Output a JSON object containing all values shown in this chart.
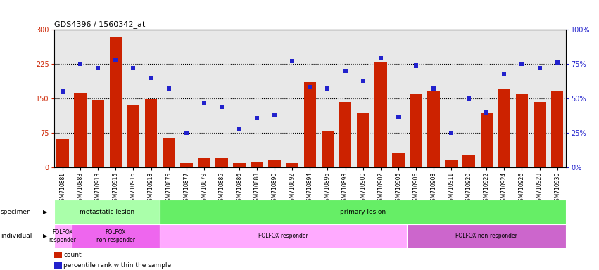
{
  "title": "GDS4396 / 1560342_at",
  "samples": [
    "GSM710881",
    "GSM710883",
    "GSM710913",
    "GSM710915",
    "GSM710916",
    "GSM710918",
    "GSM710875",
    "GSM710877",
    "GSM710879",
    "GSM710885",
    "GSM710886",
    "GSM710888",
    "GSM710890",
    "GSM710892",
    "GSM710894",
    "GSM710896",
    "GSM710898",
    "GSM710900",
    "GSM710902",
    "GSM710905",
    "GSM710906",
    "GSM710908",
    "GSM710911",
    "GSM710920",
    "GSM710922",
    "GSM710924",
    "GSM710926",
    "GSM710928",
    "GSM710930"
  ],
  "counts": [
    62,
    163,
    147,
    283,
    135,
    148,
    65,
    9,
    22,
    21,
    9,
    13,
    17,
    10,
    185,
    80,
    143,
    118,
    230,
    30,
    159,
    165,
    15,
    28,
    118,
    170,
    160,
    143,
    167
  ],
  "percentile_ranks": [
    55,
    75,
    72,
    78,
    72,
    65,
    57,
    25,
    47,
    44,
    28,
    36,
    38,
    77,
    58,
    57,
    70,
    63,
    79,
    37,
    74,
    57,
    25,
    50,
    40,
    68,
    75,
    72,
    76
  ],
  "bar_color": "#cc2200",
  "dot_color": "#2222cc",
  "bg_color": "#e8e8e8",
  "ylim_left": [
    0,
    300
  ],
  "ylim_right": [
    0,
    100
  ],
  "yticks_left": [
    0,
    75,
    150,
    225,
    300
  ],
  "yticks_right": [
    0,
    25,
    50,
    75,
    100
  ],
  "ytick_labels_right": [
    "0%",
    "25%",
    "50%",
    "75%",
    "100%"
  ],
  "hlines": [
    75,
    150,
    225
  ],
  "specimen_groups": [
    {
      "label": "metastatic lesion",
      "start": 0,
      "end": 6,
      "color": "#aaffaa"
    },
    {
      "label": "primary lesion",
      "start": 6,
      "end": 29,
      "color": "#66ee66"
    }
  ],
  "individual_groups": [
    {
      "label": "FOLFOX\nresponder",
      "start": 0,
      "end": 1,
      "color": "#ffaaff"
    },
    {
      "label": "FOLFOX\nnon-responder",
      "start": 1,
      "end": 6,
      "color": "#ee66ee"
    },
    {
      "label": "FOLFOX responder",
      "start": 6,
      "end": 20,
      "color": "#ffaaff"
    },
    {
      "label": "FOLFOX non-responder",
      "start": 20,
      "end": 29,
      "color": "#cc66cc"
    }
  ],
  "legend_items": [
    {
      "color": "#cc2200",
      "label": "count"
    },
    {
      "color": "#2222cc",
      "label": "percentile rank within the sample"
    }
  ]
}
